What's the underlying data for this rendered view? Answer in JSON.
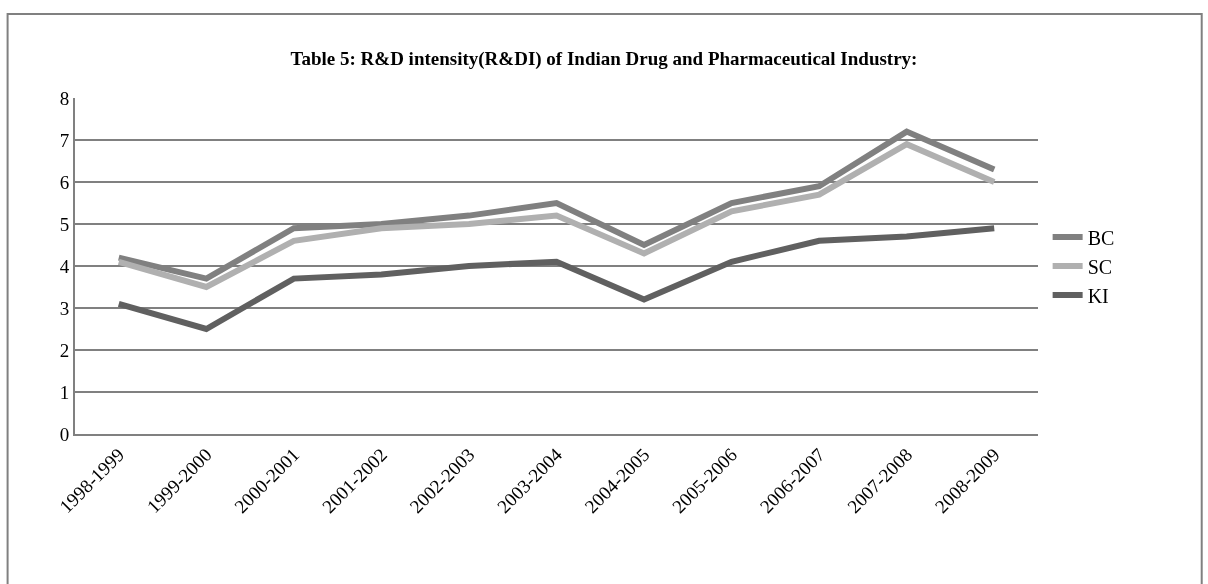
{
  "chart_data": {
    "type": "line",
    "title": "Table 5: R&D intensity(R&DI) of Indian Drug and Pharmaceutical Industry:",
    "categories": [
      "1998-1999",
      "1999-2000",
      "2000-2001",
      "2001-2002",
      "2002-2003",
      "2003-2004",
      "2004-2005",
      "2005-2006",
      "2006-2007",
      "2007-2008",
      "2008-2009"
    ],
    "series": [
      {
        "name": "BC",
        "color": "#808080",
        "values": [
          4.2,
          3.7,
          4.9,
          5.0,
          5.2,
          5.5,
          4.5,
          5.5,
          5.9,
          7.2,
          6.3
        ]
      },
      {
        "name": "SC",
        "color": "#b0b0b0",
        "values": [
          4.1,
          3.5,
          4.6,
          4.9,
          5.0,
          5.2,
          4.3,
          5.3,
          5.7,
          6.9,
          6.0
        ]
      },
      {
        "name": "KI",
        "color": "#606060",
        "values": [
          3.1,
          2.5,
          3.7,
          3.8,
          4.0,
          4.1,
          3.2,
          4.1,
          4.6,
          4.7,
          4.9
        ]
      }
    ],
    "ylim": [
      0,
      8
    ],
    "yticks": [
      0,
      1,
      2,
      3,
      4,
      5,
      6,
      7,
      8
    ],
    "grid": "y",
    "legend": "right",
    "marker": "none",
    "line_style": "solid"
  }
}
